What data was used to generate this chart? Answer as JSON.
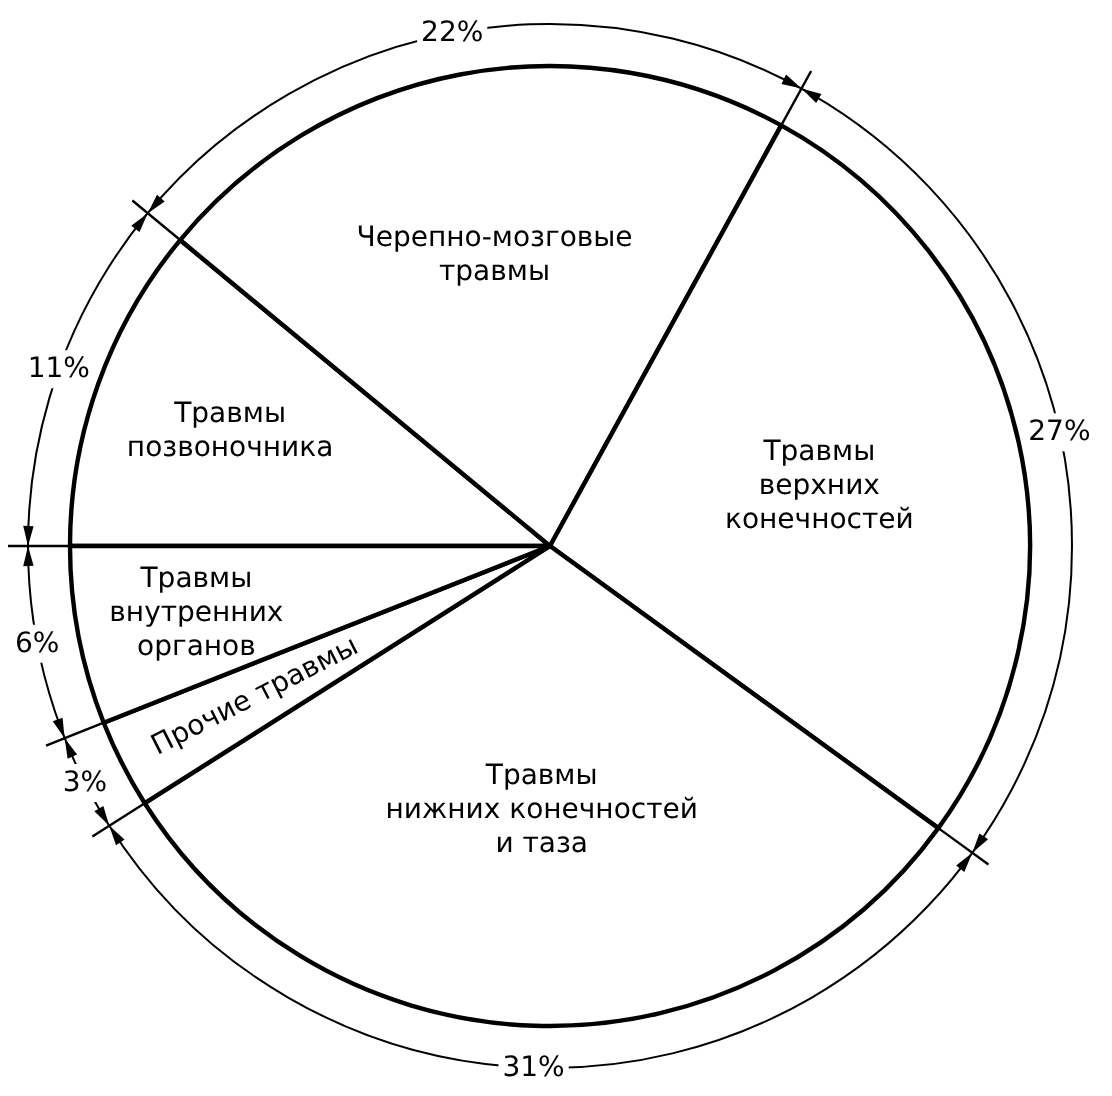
{
  "chart_data": {
    "type": "pie",
    "categories": [
      "Травмы\nпозвоночника",
      "Черепно-мозговые\nтравмы",
      "Травмы\nверхних\nконечностей",
      "Травмы\nнижних конечностей\nи таза",
      "Прочие травмы",
      "Травмы\nвнутренних\nорганов"
    ],
    "values": [
      11,
      22,
      27,
      31,
      3,
      6
    ],
    "colors": [
      "#ffffff",
      "#ffffff",
      "#ffffff",
      "#ffffff",
      "#ffffff",
      "#ffffff"
    ],
    "value_labels": [
      "11%",
      "22%",
      "27%",
      "31%",
      "3%",
      "6%"
    ]
  }
}
